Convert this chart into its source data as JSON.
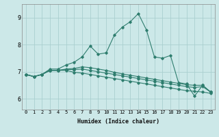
{
  "xlabel": "Humidex (Indice chaleur)",
  "background_color": "#cce8e8",
  "line_color": "#2e7d6e",
  "grid_color": "#aacfcf",
  "xlim": [
    -0.5,
    23.5
  ],
  "ylim": [
    5.6,
    9.5
  ],
  "yticks": [
    6,
    7,
    8,
    9
  ],
  "xticks": [
    0,
    1,
    2,
    3,
    4,
    5,
    6,
    7,
    8,
    9,
    10,
    11,
    12,
    13,
    14,
    15,
    16,
    17,
    18,
    19,
    20,
    21,
    22,
    23
  ],
  "series": [
    [
      6.9,
      6.82,
      6.9,
      7.1,
      7.1,
      7.25,
      7.35,
      7.55,
      7.95,
      7.65,
      7.7,
      8.35,
      8.65,
      8.85,
      9.15,
      8.55,
      7.55,
      7.5,
      7.6,
      6.6,
      6.55,
      6.1,
      6.5,
      6.25
    ],
    [
      6.9,
      6.82,
      6.9,
      7.05,
      7.05,
      7.05,
      6.98,
      6.95,
      6.9,
      6.85,
      6.8,
      6.75,
      6.7,
      6.65,
      6.6,
      6.55,
      6.5,
      6.45,
      6.4,
      6.35,
      6.3,
      6.28,
      6.25,
      6.2
    ],
    [
      6.9,
      6.82,
      6.9,
      7.05,
      7.05,
      7.08,
      7.08,
      7.1,
      7.05,
      7.0,
      6.95,
      6.9,
      6.85,
      6.8,
      6.75,
      6.7,
      6.65,
      6.6,
      6.55,
      6.5,
      6.45,
      6.42,
      6.45,
      6.25
    ],
    [
      6.9,
      6.82,
      6.9,
      7.05,
      7.05,
      7.1,
      7.12,
      7.18,
      7.15,
      7.1,
      7.05,
      6.98,
      6.92,
      6.87,
      6.82,
      6.77,
      6.72,
      6.67,
      6.62,
      6.57,
      6.52,
      6.5,
      6.5,
      6.25
    ]
  ]
}
